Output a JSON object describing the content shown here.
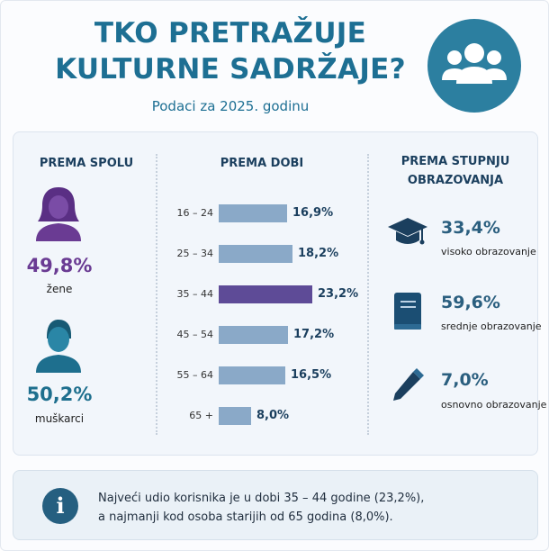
{
  "header": {
    "title_line1": "TKO PRETRAŽUJE",
    "title_line2": "KULTURNE SADRŽAJE?",
    "subtitle": "Podaci za 2025. godinu"
  },
  "gender": {
    "heading": "PREMA SPOLU",
    "female_value": "49,8%",
    "female_label": "žene",
    "male_value": "50,2%",
    "male_label": "muškarci"
  },
  "age": {
    "heading": "PREMA DOBI"
  },
  "education": {
    "heading_line1": "PREMA STUPNJU",
    "heading_line2": "OBRAZOVANJA",
    "items": [
      {
        "value": "33,4%",
        "label": "visoko obrazovanje",
        "icon": "graduation-cap-icon"
      },
      {
        "value": "59,6%",
        "label": "srednje obrazovanje",
        "icon": "book-icon"
      },
      {
        "value": "7,0%",
        "label": "osnovno obrazovanje",
        "icon": "pencil-icon"
      }
    ]
  },
  "info": {
    "line1": "Najveći udio korisnika je u dobi 35 – 44 godine (23,2%),",
    "line2": "a najmanji kod osoba starijih od 65 godina (8,0%)."
  },
  "colors": {
    "title": "#1d6f93",
    "female": "#6a3b93",
    "male": "#1e6f8e",
    "bar": "#8aa9c8",
    "bar_highlight": "#5e4b97"
  },
  "chart_data": {
    "type": "bar",
    "orientation": "horizontal",
    "title": "PREMA DOBI",
    "categories": [
      "16 – 24",
      "25 – 34",
      "35 – 44",
      "45 – 54",
      "55 – 64",
      "65 +"
    ],
    "values": [
      16.9,
      18.2,
      23.2,
      17.2,
      16.5,
      8.0
    ],
    "value_labels": [
      "16,9%",
      "18,2%",
      "23,2%",
      "17,2%",
      "16,5%",
      "8,0%"
    ],
    "highlight_index": 2,
    "xlim": [
      0,
      25
    ],
    "grid": false
  }
}
